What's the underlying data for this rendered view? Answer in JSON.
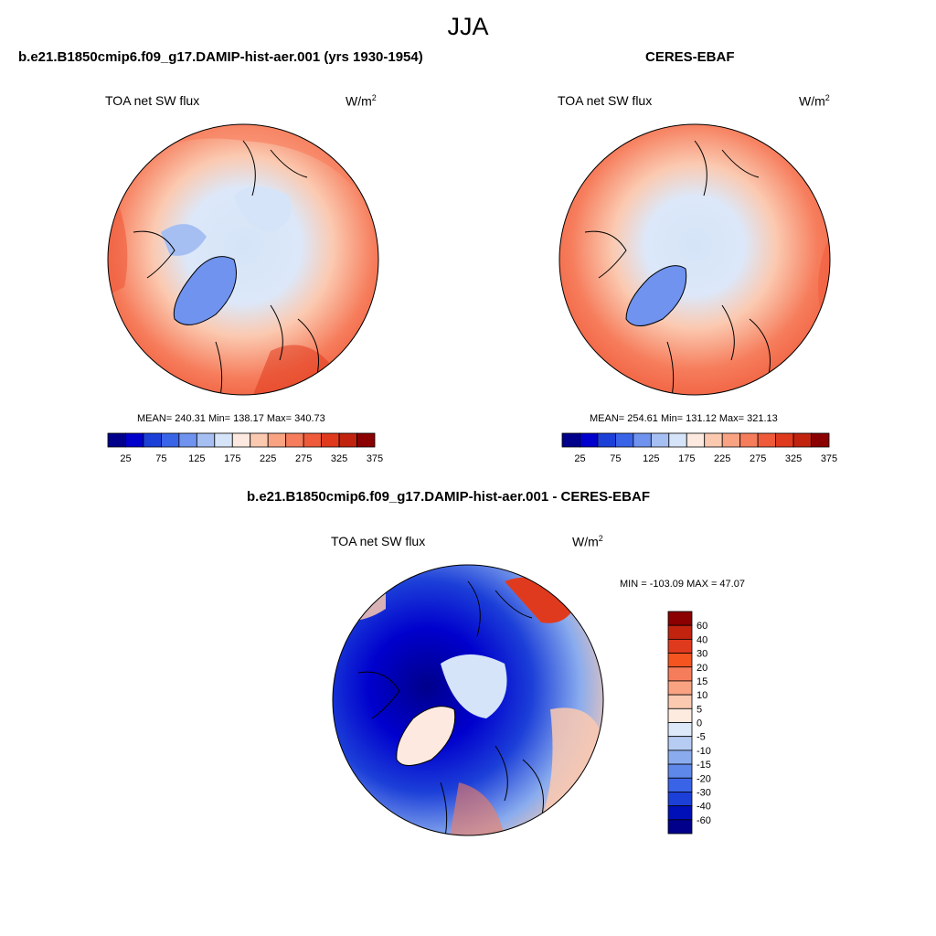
{
  "figure": {
    "season": "JJA"
  },
  "panels": [
    {
      "title": "b.e21.B1850cmip6.f09_g17.DAMIP-hist-aer.001 (yrs 1930-1954)",
      "variable": "TOA net SW flux",
      "units_base": "W/m",
      "units_exp": "2",
      "stats": "MEAN= 240.31  Min= 138.17  Max= 340.73",
      "mean": 240.31,
      "min": 138.17,
      "max": 340.73
    },
    {
      "title": "CERES-EBAF",
      "variable": "TOA net SW flux",
      "units_base": "W/m",
      "units_exp": "2",
      "stats": "MEAN= 254.61  Min= 131.12  Max= 321.13",
      "mean": 254.61,
      "min": 131.12,
      "max": 321.13
    },
    {
      "title": "b.e21.B1850cmip6.f09_g17.DAMIP-hist-aer.001 - CERES-EBAF",
      "variable": "TOA net SW flux",
      "units_base": "W/m",
      "units_exp": "2",
      "stats": "MIN = -103.09 MAX =  47.07",
      "min": -103.09,
      "max": 47.07
    }
  ],
  "colorbars": {
    "absolute": {
      "orientation": "horizontal",
      "labels": [
        "25",
        "75",
        "125",
        "175",
        "225",
        "275",
        "325",
        "375"
      ],
      "colors": [
        "#00008b",
        "#0000cd",
        "#1c3fd8",
        "#3a64e8",
        "#6f93ee",
        "#a6bff3",
        "#d5e4f8",
        "#fde9df",
        "#fbc9b0",
        "#f9a382",
        "#f67d5c",
        "#ef5a3a",
        "#e03a1e",
        "#c2230f",
        "#8b0000"
      ]
    },
    "difference": {
      "orientation": "vertical",
      "labels": [
        "60",
        "40",
        "30",
        "20",
        "15",
        "10",
        "5",
        "0",
        "-5",
        "-10",
        "-15",
        "-20",
        "-30",
        "-40",
        "-60"
      ],
      "colors": [
        "#8b0000",
        "#c2230f",
        "#e03a1e",
        "#f5531f",
        "#f67d5c",
        "#f9a382",
        "#fbc9b0",
        "#fdebe0",
        "#dde9f8",
        "#b6ccf3",
        "#8aacee",
        "#5f88eb",
        "#3a64e8",
        "#1c3fd8",
        "#0010b8",
        "#00008b"
      ]
    }
  }
}
